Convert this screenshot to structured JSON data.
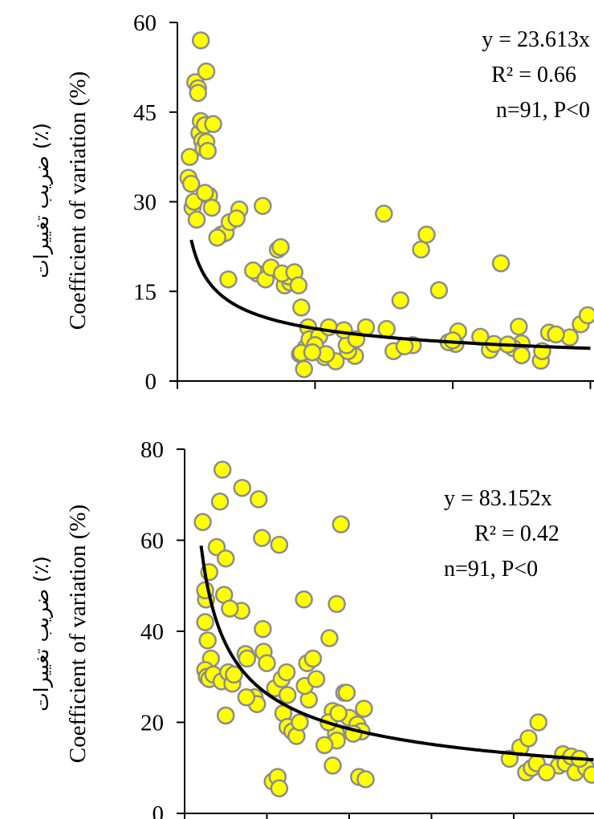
{
  "chart_data": [
    {
      "type": "scatter",
      "title": "",
      "ylabel": "Coefficient of variation (%)",
      "ylabel_fa": "ضریب تغییرات (٪)",
      "xlabel": "",
      "ylim": [
        0,
        60
      ],
      "yticks": [
        0,
        15,
        30,
        45,
        60
      ],
      "xlim": [
        0,
        30
      ],
      "xticks": [
        0,
        10,
        20,
        30
      ],
      "annotations": [
        "y = 23.613x",
        "R² = 0.66",
        "n=91, P<0"
      ],
      "trendline": {
        "type": "power",
        "coefficient": 23.613,
        "exponent": -0.43,
        "x_start": 1.0,
        "x_end": 30
      },
      "point_color": "#ffff00",
      "point_edge_color": "#8c8c8c",
      "trend_color": "#000000",
      "series": [
        {
          "x": [
            0.9,
            1.3,
            1.5,
            1.5,
            1.6,
            1.7,
            1.8,
            1.9,
            2.0,
            2.1,
            2.2,
            2.3,
            2.5,
            0.8,
            1.0,
            1.1,
            1.2,
            1.4,
            2.6,
            1.7,
            2.0,
            3.2,
            3.5,
            2.9,
            2.1,
            4.5,
            3.7,
            3.8,
            4.3,
            6.2,
            5.8,
            5.5,
            6.4,
            6.8,
            7.3,
            7.8,
            8.2,
            8.1,
            7.6,
            8.5,
            8.8,
            9.0,
            9.5,
            7.5,
            8.9,
            9.3,
            9.6,
            9.0,
            9.2,
            10.3,
            10.0,
            11.0,
            10.7,
            11.5,
            10.8,
            9.8,
            12.9,
            12.4,
            12.3,
            12.1,
            13.0,
            13.7,
            15.0,
            17.7,
            16.2,
            15.7,
            17.1,
            18.1,
            19.0,
            20.2,
            20.4,
            19.7,
            22.0,
            22.7,
            23.5,
            25.0,
            24.4,
            24.8,
            26.4,
            27.0,
            28.5,
            29.3,
            29.8,
            25.0,
            27.5,
            16.5,
            15.2,
            20.0,
            23.0,
            26.5,
            24.0
          ],
          "y": [
            37.5,
            50.0,
            49.0,
            48.2,
            41.5,
            43.5,
            40.2,
            39.0,
            42.8,
            40.0,
            38.5,
            31.0,
            29.0,
            34.0,
            33.0,
            29.0,
            30.0,
            27.0,
            43.0,
            57.0,
            31.5,
            24.5,
            24.8,
            24.0,
            51.8,
            28.7,
            17.0,
            26.6,
            27.2,
            29.3,
            18.0,
            18.5,
            17.0,
            19.0,
            22.0,
            16.0,
            16.5,
            17.5,
            18.0,
            18.2,
            16.0,
            12.3,
            9.0,
            22.4,
            4.5,
            5.5,
            7.0,
            4.7,
            2.0,
            7.5,
            6.0,
            9.0,
            4.0,
            3.3,
            4.5,
            4.8,
            4.2,
            5.0,
            6.0,
            8.5,
            7.0,
            9.0,
            28.0,
            22.0,
            13.5,
            5.0,
            6.0,
            24.5,
            15.2,
            6.2,
            8.3,
            6.5,
            7.4,
            5.2,
            19.7,
            6.3,
            5.5,
            9.1,
            3.4,
            8.1,
            7.3,
            9.5,
            11.0,
            4.3,
            7.8,
            5.8,
            8.7,
            6.8,
            6.2,
            5.0,
            6.1
          ]
        }
      ]
    },
    {
      "type": "scatter",
      "title": "",
      "ylabel": "Coefficient of variation (%)",
      "ylabel_fa": "ضریب تغییرات (٪)",
      "xlabel": "",
      "ylim": [
        0,
        80
      ],
      "yticks": [
        0,
        20,
        40,
        60,
        80
      ],
      "xlim": [
        0,
        50
      ],
      "xticks": [
        0,
        10,
        20,
        30,
        40,
        50
      ],
      "annotations": [
        "y = 83.152x",
        "R² = 0.42",
        "n=91, P<0"
      ],
      "trendline": {
        "type": "power",
        "coefficient": 83.152,
        "exponent": -0.5,
        "x_start": 2.0,
        "x_end": 50
      },
      "point_color": "#ffff00",
      "point_edge_color": "#8c8c8c",
      "trend_color": "#000000",
      "series": [
        {
          "x": [
            2.2,
            2.6,
            2.5,
            2.8,
            3.2,
            4.3,
            4.6,
            3.9,
            5.0,
            4.8,
            2.5,
            2.7,
            3.0,
            3.5,
            4.5,
            5.3,
            5.8,
            6.0,
            7.0,
            6.9,
            7.4,
            7.6,
            8.5,
            8.8,
            9.0,
            9.4,
            9.6,
            10.0,
            11.0,
            11.5,
            11.8,
            12.4,
            12.0,
            12.5,
            13.1,
            13.6,
            14.5,
            14.9,
            15.1,
            15.6,
            14.6,
            16.0,
            17.6,
            18.0,
            18.4,
            18.5,
            19.0,
            19.4,
            18.5,
            18.0,
            19.7,
            20.0,
            21.0,
            21.5,
            21.8,
            21.2,
            22.0,
            10.7,
            11.3,
            11.5,
            17.5,
            17.0,
            18.7,
            39.5,
            40.8,
            41.5,
            42.2,
            42.8,
            41.8,
            43.0,
            45.5,
            46.0,
            46.3,
            47.0,
            47.5,
            48.8,
            49.5,
            49.8,
            50.5,
            50.8,
            48.0,
            44.0,
            3.0,
            2.5,
            5.5,
            9.5,
            12.5,
            7.5,
            5.0,
            14.0,
            20.5
          ],
          "y": [
            64.0,
            47.0,
            42.0,
            38.0,
            34.0,
            68.5,
            75.5,
            58.5,
            56.0,
            48.0,
            31.5,
            30.0,
            29.5,
            30.5,
            29.0,
            31.0,
            28.5,
            30.5,
            71.5,
            44.5,
            35.0,
            34.0,
            25.5,
            24.0,
            69.0,
            60.5,
            35.5,
            33.0,
            27.5,
            59.0,
            29.5,
            31.0,
            22.0,
            19.0,
            18.0,
            17.0,
            47.0,
            33.0,
            25.0,
            34.0,
            28.0,
            29.5,
            38.5,
            22.5,
            17.5,
            46.0,
            63.5,
            26.5,
            16.0,
            10.5,
            26.5,
            21.0,
            19.5,
            18.0,
            23.0,
            8.0,
            7.5,
            7.0,
            8.0,
            5.5,
            20.0,
            15.0,
            22.0,
            12.0,
            14.5,
            9.0,
            10.0,
            11.0,
            16.5,
            20.0,
            10.5,
            13.0,
            11.0,
            12.5,
            9.0,
            10.0,
            8.5,
            12.5,
            9.5,
            5.5,
            12.0,
            9.0,
            53.0,
            49.0,
            45.0,
            40.5,
            26.0,
            25.5,
            21.5,
            20.0,
            17.5
          ]
        }
      ]
    }
  ]
}
